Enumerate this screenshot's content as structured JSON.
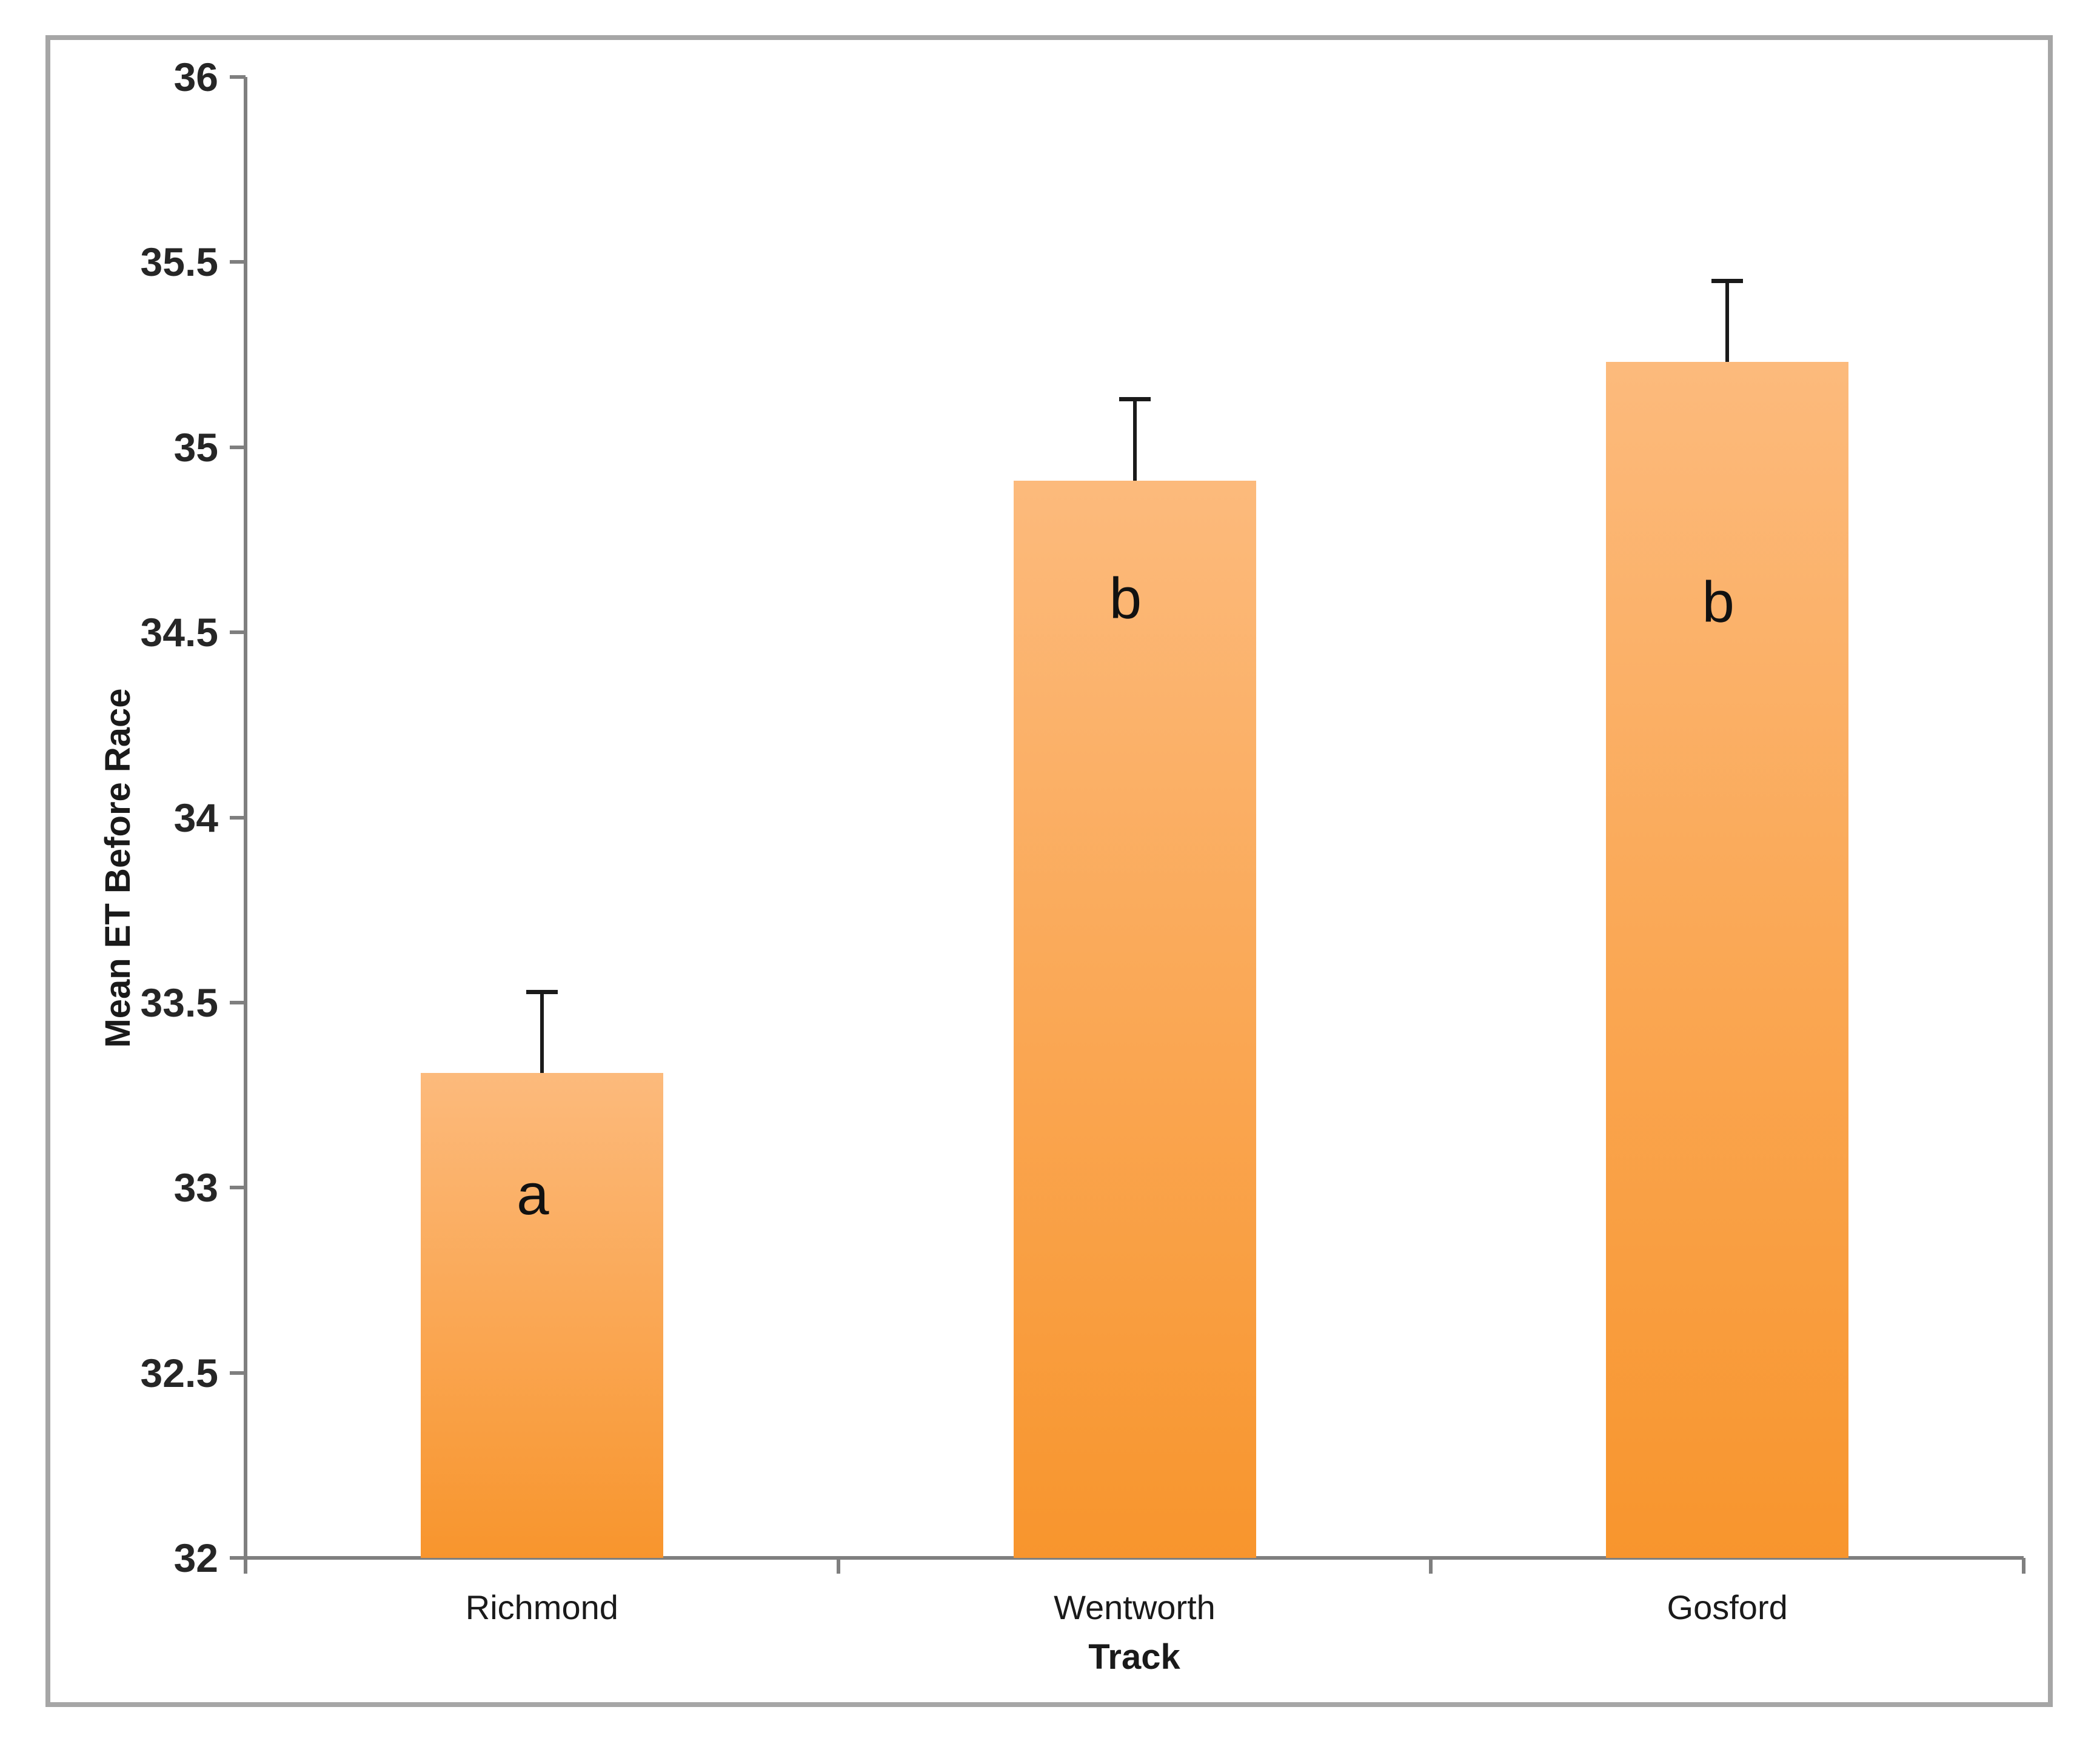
{
  "figure": {
    "background": "#ffffff",
    "border_color": "#a6a6a6"
  },
  "chart_data": {
    "type": "bar",
    "title": "",
    "xlabel": "Track",
    "ylabel": "Mean ET Before Race",
    "categories": [
      "Richmond",
      "Wentworth",
      "Gosford"
    ],
    "values": [
      33.31,
      34.91,
      35.23
    ],
    "error_upper": [
      0.22,
      0.22,
      0.22
    ],
    "bar_letters": [
      "a",
      "b",
      "b"
    ],
    "bar_letter_y": [
      32.98,
      34.59,
      34.58
    ],
    "ylim": [
      32,
      36
    ],
    "ytick_step": 0.5,
    "ytick_labels": [
      "32",
      "32.5",
      "33",
      "33.5",
      "34",
      "34.5",
      "35",
      "35.5",
      "36"
    ],
    "grid": false,
    "legend": false,
    "bar_color_top": "#fcba7c",
    "bar_color_bottom": "#f8952d",
    "axis_color": "#7f7f7f",
    "tick_label_color": "#262626",
    "error_bar_color": "#1a1a1a"
  }
}
